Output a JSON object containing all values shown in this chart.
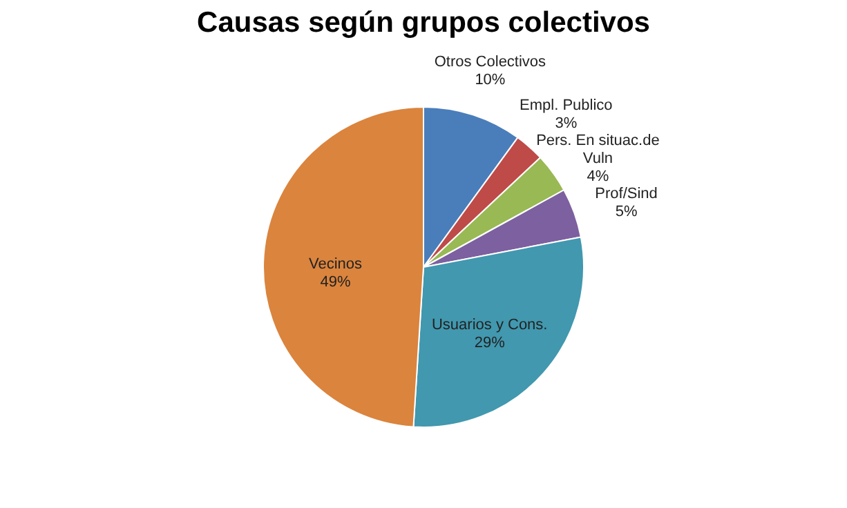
{
  "chart_data": {
    "type": "pie",
    "title": "Causas según grupos colectivos",
    "categories": [
      "Otros Colectivos",
      "Empl. Publico",
      "Pers. En situac.de Vuln",
      "Prof/Sind",
      "Usuarios y Cons.",
      "Vecinos"
    ],
    "values": [
      10,
      3,
      4,
      5,
      29,
      49
    ],
    "colors": [
      "#4a7ebb",
      "#be4b48",
      "#98b954",
      "#7d60a0",
      "#4198af",
      "#db843d"
    ],
    "value_labels": [
      "10%",
      "3%",
      "4%",
      "5%",
      "29%",
      "49%"
    ],
    "legend": false
  }
}
